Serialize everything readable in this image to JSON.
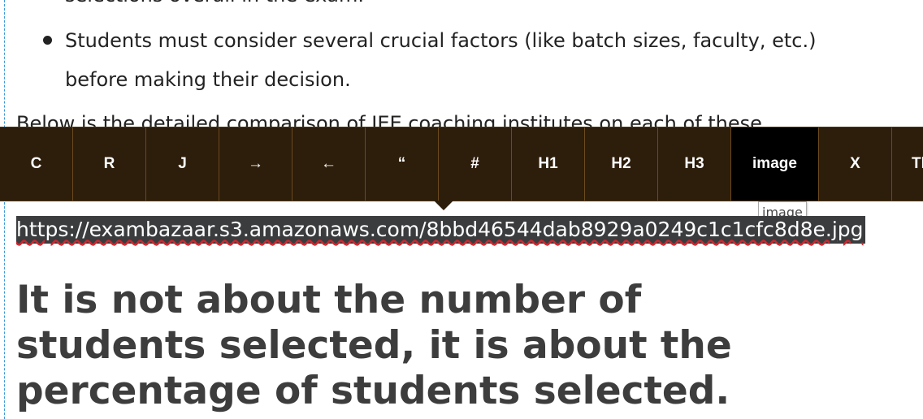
{
  "content": {
    "partial_top_text": "selections overall in the exam.",
    "bullet_text": "Students must consider several crucial factors (like batch sizes, faculty, etc.) before making their decision.",
    "hidden_line_text": "Below is the detailed comparison of JEE coaching institutes on each of these",
    "url_text": "https://exambazaar.s3.amazonaws.com/8bbd46544dab8929a0249c1c1cfc8d8e.jpg",
    "heading_text": "It is not about the number of students selected, it is about the percentage of students selected."
  },
  "toolbar": {
    "buttons": [
      {
        "label": "C",
        "icon": "center-align"
      },
      {
        "label": "R",
        "icon": "right-align"
      },
      {
        "label": "J",
        "icon": "justify-align"
      },
      {
        "label": "→",
        "icon": "indent"
      },
      {
        "label": "←",
        "icon": "outdent"
      },
      {
        "label": "“",
        "icon": "blockquote"
      },
      {
        "label": "#",
        "icon": "numbered-list"
      },
      {
        "label": "H1",
        "icon": "heading-1"
      },
      {
        "label": "H2",
        "icon": "heading-2"
      },
      {
        "label": "H3",
        "icon": "heading-3"
      },
      {
        "label": "image",
        "icon": "image",
        "active": true
      },
      {
        "label": "X",
        "icon": "clear-format"
      },
      {
        "label": "Tl",
        "icon": "truncated-button"
      }
    ],
    "tooltip": "image"
  },
  "colors": {
    "toolbar_bg": "#2d1d0b",
    "toolbar_active_bg": "#000000",
    "toolbar_divider": "#6b4a1f",
    "selection_bg": "#3a3c3e",
    "heading": "#3d3d3d",
    "spellcheck": "#d0262d"
  }
}
